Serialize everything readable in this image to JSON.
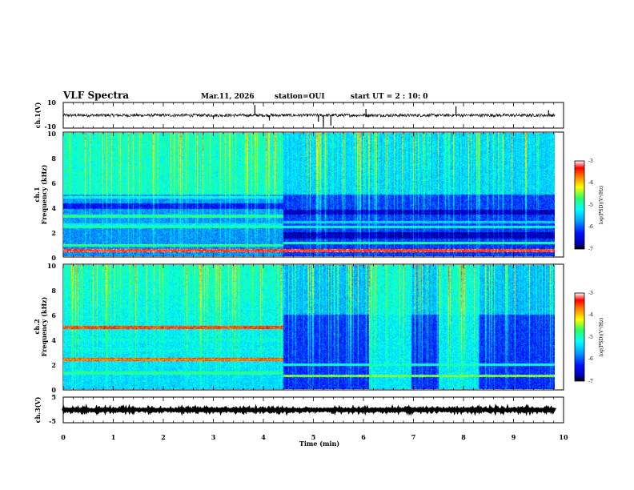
{
  "header": {
    "title": "VLF Spectra",
    "date": "Mar.11, 2026",
    "station": "station=OUI",
    "start_ut": "start UT =  2 : 10: 0"
  },
  "chart_data": [
    {
      "type": "line",
      "name": "ch1-waveform",
      "ylabel": "ch.1(V)",
      "yticks": [
        "10",
        "-10"
      ],
      "ylim": [
        -10,
        10
      ],
      "baseline": 0,
      "noise_amplitude": 1.2,
      "spikes": [
        {
          "t": 3.0,
          "v": -3
        },
        {
          "t": 3.83,
          "v": 8
        },
        {
          "t": 4.12,
          "v": -4
        },
        {
          "t": 5.1,
          "v": -5
        },
        {
          "t": 5.2,
          "v": -9
        },
        {
          "t": 5.35,
          "v": -8
        },
        {
          "t": 6.05,
          "v": 5
        },
        {
          "t": 7.85,
          "v": 7
        },
        {
          "t": 9.7,
          "v": 4
        }
      ],
      "xlim": [
        0,
        10
      ]
    },
    {
      "type": "heatmap",
      "name": "ch1-spectrogram",
      "ylabel": "ch.1",
      "ylabel2": "Frequency (kHz)",
      "yticks": [
        "10",
        "8",
        "6",
        "4",
        "2",
        "0"
      ],
      "ylim": [
        0,
        10
      ],
      "xlim": [
        0,
        9.83
      ],
      "colorbar": {
        "label": "log(PSD)(V²/Hz)",
        "ticks": [
          "-3",
          "-4",
          "-5",
          "-6",
          "-7"
        ],
        "range": [
          -7,
          -3
        ]
      },
      "regime_change_min": 4.4,
      "bands_before": [
        {
          "f": 0.5,
          "level": -3.5
        },
        {
          "f": 0.9,
          "level": -4.9
        },
        {
          "f": 2.4,
          "level": -5.0
        },
        {
          "f": 2.6,
          "level": -5.3
        },
        {
          "f": 3.3,
          "level": -5.0
        },
        {
          "f": 4.4,
          "level": -6.0
        },
        {
          "f": 4.8,
          "level": -5.2
        }
      ],
      "bands_after": [
        {
          "f": 0.5,
          "level": -3.5
        },
        {
          "f": 1.1,
          "level": -5.0
        },
        {
          "f": 2.4,
          "level": -5.2
        },
        {
          "f": 2.8,
          "level": -5.5
        }
      ]
    },
    {
      "type": "heatmap",
      "name": "ch2-spectrogram",
      "ylabel": "ch.2",
      "ylabel2": "Frequency (kHz)",
      "yticks": [
        "10",
        "8",
        "6",
        "4",
        "2",
        "0"
      ],
      "ylim": [
        0,
        10
      ],
      "xlim": [
        0,
        9.83
      ],
      "colorbar": {
        "label": "log(PSD)(V²/Hz)",
        "ticks": [
          "-3",
          "-4",
          "-5",
          "-6",
          "-7"
        ],
        "range": [
          -7,
          -3
        ]
      },
      "regime_change_min": 4.4,
      "bands_before": [
        {
          "f": 5.0,
          "level": -3.6
        },
        {
          "f": 2.4,
          "level": -3.8
        },
        {
          "f": 4.0,
          "level": -5.2
        },
        {
          "f": 3.2,
          "level": -5.3
        },
        {
          "f": 1.3,
          "level": -5.0
        }
      ],
      "bands_after": [
        {
          "f": 2.0,
          "level": -5.1
        },
        {
          "f": 1.1,
          "level": -4.6
        }
      ],
      "bright_windows_min": [
        [
          6.1,
          6.95
        ],
        [
          7.5,
          8.3
        ]
      ]
    },
    {
      "type": "line",
      "name": "ch3-waveform",
      "ylabel": "ch.3(V)",
      "yticks": [
        "5",
        "-5"
      ],
      "ylim": [
        -5,
        5
      ],
      "baseline": 0,
      "noise_amplitude": 0.3,
      "xlim": [
        0,
        10
      ]
    }
  ],
  "xaxis": {
    "xlabel": "Time (min)",
    "ticks": [
      "0",
      "1",
      "2",
      "3",
      "4",
      "5",
      "6",
      "7",
      "8",
      "9",
      "10"
    ],
    "xlim": [
      0,
      10
    ]
  }
}
